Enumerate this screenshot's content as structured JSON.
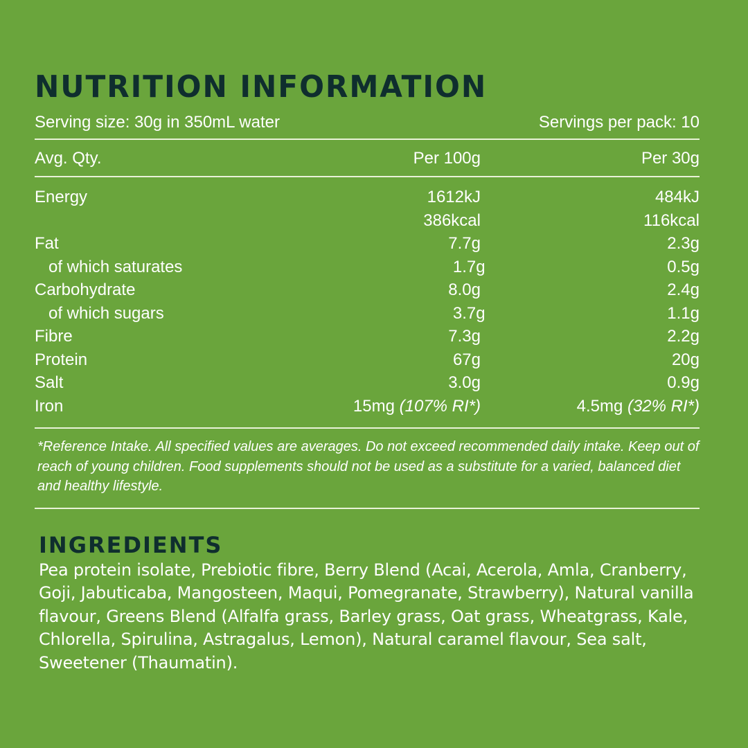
{
  "nutrition": {
    "title": "NUTRITION INFORMATION",
    "serving_size": "Serving size: 30g in 350mL water",
    "servings_per_pack": "Servings per pack: 10",
    "headers": {
      "label": "Avg. Qty.",
      "per100": "Per 100g",
      "per30": "Per 30g"
    },
    "rows": [
      {
        "label": "Energy",
        "per100": "1612kJ",
        "per30": "484kJ"
      },
      {
        "label": "",
        "per100": "386kcal",
        "per30": "116kcal"
      },
      {
        "label": "Fat",
        "per100": "7.7g",
        "per30": "2.3g"
      },
      {
        "label": "of which saturates",
        "per100": "1.7g",
        "per30": "0.5g"
      },
      {
        "label": "Carbohydrate",
        "per100": "8.0g",
        "per30": "2.4g"
      },
      {
        "label": "of which sugars",
        "per100": "3.7g",
        "per30": "1.1g"
      },
      {
        "label": "Fibre",
        "per100": "7.3g",
        "per30": "2.2g"
      },
      {
        "label": "Protein",
        "per100": "67g",
        "per30": "20g"
      },
      {
        "label": "Salt",
        "per100": "3.0g",
        "per30": "0.9g"
      },
      {
        "label": "Iron",
        "per100": "15mg",
        "per100_ri": "(107% RI*)",
        "per30": "4.5mg",
        "per30_ri": "(32% RI*)"
      }
    ],
    "footnote": "*Reference Intake. All specified values are averages. Do not exceed recommended daily intake. Keep out of reach of young children. Food supplements should not be used as a substitute for a varied, balanced diet and healthy lifestyle."
  },
  "ingredients": {
    "title": "INGREDIENTS",
    "text": "Pea protein isolate, Prebiotic fibre, Berry Blend (Acai, Acerola, Amla, Cranberry, Goji, Jabuticaba, Mangosteen, Maqui, Pomegranate, Strawberry), Natural vanilla flavour, Greens Blend (Alfalfa grass, Barley grass, Oat grass, Wheatgrass, Kale, Chlorella, Spirulina, Astragalus, Lemon), Natural caramel flavour, Sea salt, Sweetener (Thaumatin)."
  },
  "colors": {
    "background": "#6aa53c",
    "heading": "#0f2e2e",
    "text": "#ffffff",
    "rule": "#e9f2d8"
  }
}
